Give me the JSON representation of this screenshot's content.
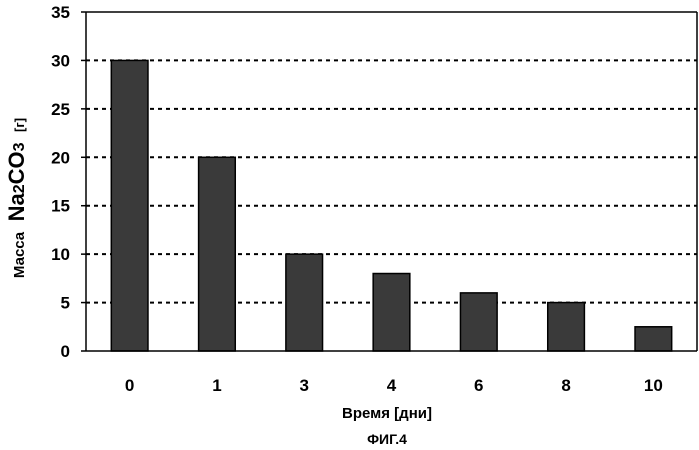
{
  "chart_data": {
    "type": "bar",
    "categories": [
      "0",
      "1",
      "3",
      "4",
      "6",
      "8",
      "10"
    ],
    "values": [
      30,
      20,
      10,
      8,
      6,
      5,
      2.5
    ],
    "ylim": [
      0,
      35
    ],
    "yticks": [
      "0",
      "5",
      "10",
      "15",
      "20",
      "25",
      "30",
      "35"
    ],
    "xlabel": "Время [дни]",
    "ylabel": {
      "prefix": "Масса",
      "formula_main": "Na",
      "formula_sub1": "2",
      "formula_mid": "CO",
      "formula_sub2": "3",
      "unit": "[г]"
    },
    "caption": "ФИГ.4",
    "grid": "horizontal dashed",
    "colors": {
      "bar": "#3a3a3a",
      "grid": "#000000"
    }
  }
}
